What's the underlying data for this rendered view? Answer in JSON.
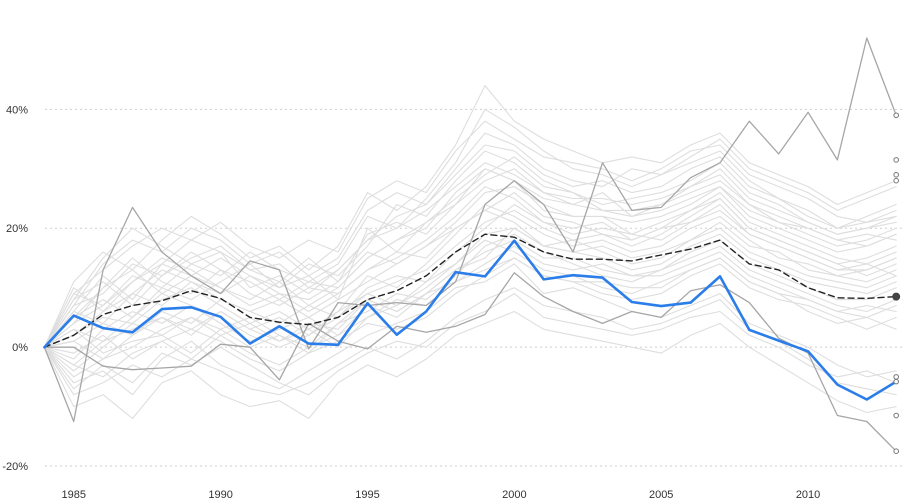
{
  "chart_data": {
    "type": "line",
    "title": "",
    "xlabel": "",
    "ylabel": "",
    "x": [
      1984,
      1985,
      1986,
      1987,
      1988,
      1989,
      1990,
      1991,
      1992,
      1993,
      1994,
      1995,
      1996,
      1997,
      1998,
      1999,
      2000,
      2001,
      2002,
      2003,
      2004,
      2005,
      2006,
      2007,
      2008,
      2009,
      2010,
      2011,
      2012,
      2013
    ],
    "xlim": [
      1983.0,
      2013.3
    ],
    "ylim": [
      -21,
      52
    ],
    "x_ticks": [
      1985,
      1990,
      1995,
      2000,
      2005,
      2010
    ],
    "x_tick_labels": [
      "1985",
      "1990",
      "1995",
      "2000",
      "2005",
      "2010"
    ],
    "y_ticks": [
      -20,
      0,
      20,
      40
    ],
    "y_tick_labels": [
      "-20%",
      "0%",
      "20%",
      "40%"
    ],
    "grid": "horizontal dotted",
    "legend": "none",
    "colors": {
      "highlight": "#2b7de9",
      "average": "#222222",
      "reference": "#a6a6a6",
      "background": "#dedede",
      "grid": "#cfcfcf"
    },
    "series": [
      {
        "role": "highlight",
        "values": [
          0,
          5.3,
          3.2,
          2.5,
          6.4,
          6.7,
          5.1,
          0.6,
          3.5,
          0.6,
          0.4,
          7.4,
          2.1,
          6.0,
          12.6,
          11.9,
          17.9,
          11.4,
          12.1,
          11.7,
          7.6,
          6.9,
          7.5,
          11.9,
          2.9,
          1.1,
          -0.7,
          -6.3,
          -8.8,
          -5.8
        ]
      },
      {
        "role": "average",
        "values": [
          0,
          2.0,
          5.5,
          7.0,
          7.8,
          9.5,
          8.2,
          5.0,
          4.2,
          3.8,
          5.0,
          8.0,
          9.5,
          12.0,
          16.0,
          19.0,
          18.5,
          16.0,
          14.8,
          14.8,
          14.5,
          15.5,
          16.5,
          18.0,
          14.0,
          13.0,
          10.0,
          8.3,
          8.2,
          8.5
        ]
      },
      {
        "role": "reference",
        "values": [
          0,
          -12.5,
          13.0,
          23.5,
          16.0,
          12.0,
          9.0,
          14.5,
          13.0,
          -0.3,
          7.5,
          7.0,
          7.5,
          7.0,
          11.0,
          24.0,
          28.0,
          24.0,
          16.0,
          31.0,
          23.0,
          23.5,
          28.5,
          31.0,
          38.0,
          32.5,
          39.5,
          31.5,
          52.0,
          39.0
        ]
      },
      {
        "role": "reference",
        "values": [
          0,
          0,
          -3.2,
          -3.8,
          -3.5,
          -3.2,
          0.5,
          0.0,
          -5.5,
          4.0,
          1.0,
          -0.3,
          3.5,
          2.5,
          3.5,
          5.5,
          12.5,
          8.5,
          6.0,
          4.0,
          6.0,
          5.0,
          9.5,
          10.5,
          7.5,
          1.5,
          -1.0,
          -11.5,
          -12.5,
          -17.5
        ]
      },
      {
        "role": "background",
        "values": [
          0,
          4,
          10,
          13,
          9,
          12,
          10,
          8,
          11,
          7,
          10,
          15,
          18,
          20,
          26,
          30,
          28,
          25,
          24,
          26,
          22,
          23,
          25,
          27,
          22,
          20,
          18,
          16,
          17,
          19
        ]
      },
      {
        "role": "background",
        "values": [
          0,
          -3,
          1,
          3,
          5,
          2,
          6,
          3,
          1,
          4,
          3,
          8,
          6,
          9,
          13,
          15,
          20,
          17,
          18,
          16,
          14,
          15,
          18,
          21,
          17,
          16,
          13,
          12,
          11,
          13
        ]
      },
      {
        "role": "background",
        "values": [
          0,
          6,
          12,
          8,
          14,
          18,
          16,
          10,
          12,
          9,
          13,
          18,
          22,
          24,
          30,
          36,
          34,
          30,
          28,
          27,
          30,
          29,
          31,
          33,
          28,
          25,
          23,
          20,
          22,
          24
        ]
      },
      {
        "role": "background",
        "values": [
          0,
          -6,
          -4,
          -8,
          -2,
          1,
          -3,
          -5,
          -7,
          -4,
          -1,
          2,
          4,
          6,
          10,
          11,
          14,
          9,
          10,
          8,
          6,
          5,
          7,
          9,
          4,
          2,
          0,
          -3,
          -5,
          -4
        ]
      },
      {
        "role": "background",
        "values": [
          0,
          8,
          15,
          20,
          17,
          14,
          12,
          16,
          13,
          11,
          14,
          22,
          20,
          25,
          31,
          40,
          37,
          33,
          30,
          29,
          27,
          29,
          32,
          35,
          30,
          28,
          26,
          23,
          25,
          27
        ]
      },
      {
        "role": "background",
        "values": [
          0,
          2,
          5,
          4,
          8,
          10,
          7,
          4,
          6,
          3,
          6,
          12,
          10,
          14,
          19,
          24,
          22,
          19,
          17,
          18,
          16,
          17,
          20,
          22,
          18,
          15,
          14,
          12,
          13,
          15
        ]
      },
      {
        "role": "background",
        "values": [
          0,
          -10,
          -8,
          -12,
          -6,
          -4,
          -8,
          -10,
          -9,
          -12,
          -6,
          -3,
          -5,
          -2,
          2,
          4,
          6,
          3,
          2,
          1,
          0,
          -1,
          2,
          4,
          0,
          -3,
          -6,
          -9,
          -11,
          -10
        ]
      },
      {
        "role": "background",
        "values": [
          0,
          10,
          6,
          11,
          14,
          12,
          15,
          12,
          10,
          14,
          12,
          17,
          24,
          22,
          28,
          33,
          31,
          27,
          26,
          24,
          25,
          26,
          28,
          31,
          26,
          24,
          21,
          19,
          20,
          22
        ]
      },
      {
        "role": "background",
        "values": [
          0,
          3,
          -1,
          1,
          2,
          -1,
          3,
          5,
          2,
          0,
          4,
          6,
          9,
          8,
          12,
          17,
          19,
          16,
          14,
          12,
          11,
          13,
          15,
          17,
          13,
          11,
          9,
          7,
          6,
          8
        ]
      },
      {
        "role": "background",
        "values": [
          0,
          7,
          9,
          14,
          12,
          16,
          13,
          9,
          7,
          10,
          9,
          13,
          15,
          18,
          22,
          27,
          25,
          21,
          20,
          21,
          18,
          20,
          23,
          26,
          21,
          19,
          17,
          15,
          14,
          16
        ]
      },
      {
        "role": "background",
        "values": [
          0,
          -2,
          3,
          6,
          4,
          7,
          5,
          2,
          0,
          2,
          5,
          10,
          12,
          11,
          16,
          20,
          24,
          21,
          19,
          20,
          19,
          18,
          21,
          24,
          19,
          17,
          15,
          13,
          14,
          12
        ]
      },
      {
        "role": "background",
        "values": [
          0,
          5,
          8,
          5,
          10,
          8,
          11,
          14,
          10,
          12,
          8,
          20,
          16,
          21,
          25,
          29,
          32,
          28,
          26,
          23,
          22,
          24,
          27,
          29,
          24,
          21,
          19,
          17,
          18,
          20
        ]
      },
      {
        "role": "background",
        "values": [
          0,
          -5,
          -2,
          0,
          3,
          5,
          2,
          -1,
          -3,
          0,
          2,
          5,
          7,
          10,
          14,
          18,
          16,
          13,
          12,
          10,
          9,
          11,
          13,
          15,
          11,
          9,
          6,
          4,
          5,
          3
        ]
      },
      {
        "role": "background",
        "values": [
          0,
          9,
          13,
          17,
          20,
          18,
          21,
          17,
          15,
          18,
          16,
          25,
          28,
          26,
          33,
          38,
          35,
          32,
          31,
          30,
          28,
          30,
          33,
          34,
          29,
          27,
          25,
          22,
          21,
          23
        ]
      },
      {
        "role": "background",
        "values": [
          0,
          1,
          4,
          2,
          6,
          4,
          8,
          6,
          4,
          7,
          5,
          9,
          11,
          13,
          17,
          21,
          23,
          20,
          18,
          19,
          17,
          19,
          22,
          25,
          20,
          18,
          16,
          14,
          12,
          14
        ]
      },
      {
        "role": "background",
        "values": [
          0,
          -8,
          -6,
          -3,
          -5,
          -2,
          -4,
          -7,
          -8,
          -6,
          -3,
          0,
          -2,
          1,
          5,
          8,
          10,
          7,
          6,
          5,
          3,
          4,
          6,
          8,
          3,
          1,
          -2,
          -6,
          -7,
          -8
        ]
      },
      {
        "role": "background",
        "values": [
          0,
          6,
          4,
          9,
          7,
          11,
          9,
          12,
          9,
          8,
          11,
          16,
          14,
          17,
          21,
          26,
          27,
          24,
          22,
          22,
          21,
          22,
          24,
          27,
          23,
          21,
          20,
          18,
          19,
          18
        ]
      },
      {
        "role": "background",
        "values": [
          0,
          4,
          7,
          11,
          15,
          13,
          10,
          7,
          9,
          6,
          9,
          13,
          16,
          15,
          20,
          23,
          21,
          17,
          16,
          15,
          13,
          14,
          17,
          19,
          15,
          13,
          11,
          10,
          9,
          11
        ]
      },
      {
        "role": "background",
        "values": [
          0,
          -1,
          2,
          -2,
          1,
          3,
          1,
          -2,
          -4,
          -1,
          1,
          4,
          3,
          5,
          9,
          12,
          15,
          12,
          11,
          9,
          8,
          9,
          12,
          14,
          10,
          8,
          7,
          5,
          3,
          5
        ]
      },
      {
        "role": "background",
        "values": [
          0,
          11,
          16,
          13,
          18,
          22,
          19,
          15,
          17,
          13,
          17,
          26,
          23,
          27,
          34,
          44,
          38,
          35,
          33,
          31,
          32,
          31,
          34,
          36,
          31,
          29,
          27,
          24,
          26,
          28
        ]
      },
      {
        "role": "background",
        "values": [
          0,
          3,
          1,
          5,
          9,
          7,
          4,
          1,
          3,
          5,
          2,
          7,
          5,
          9,
          11,
          14,
          17,
          14,
          13,
          14,
          12,
          12,
          14,
          16,
          12,
          10,
          8,
          6,
          7,
          6
        ]
      },
      {
        "role": "background",
        "values": [
          0,
          -4,
          0,
          4,
          2,
          5,
          3,
          0,
          2,
          -1,
          4,
          8,
          6,
          9,
          13,
          16,
          18,
          15,
          15,
          13,
          12,
          13,
          16,
          18,
          14,
          12,
          10,
          8,
          8,
          10
        ]
      },
      {
        "role": "background",
        "values": [
          0,
          8,
          11,
          7,
          12,
          15,
          17,
          13,
          11,
          15,
          11,
          19,
          21,
          19,
          24,
          28,
          30,
          26,
          25,
          25,
          24,
          25,
          27,
          30,
          25,
          23,
          21,
          19,
          20,
          21
        ]
      },
      {
        "role": "background",
        "values": [
          0,
          -7,
          -3,
          -6,
          -1,
          -3,
          0,
          -3,
          -6,
          -8,
          -4,
          -1,
          1,
          0,
          4,
          6,
          9,
          5,
          4,
          3,
          2,
          3,
          5,
          6,
          2,
          0,
          -3,
          -5,
          -4,
          -6
        ]
      },
      {
        "role": "background",
        "values": [
          0,
          5,
          10,
          15,
          11,
          9,
          13,
          11,
          8,
          11,
          10,
          15,
          18,
          21,
          24,
          30,
          28,
          23,
          22,
          22,
          19,
          21,
          23,
          25,
          20,
          18,
          16,
          14,
          15,
          17
        ]
      },
      {
        "role": "background",
        "values": [
          0,
          2,
          6,
          9,
          13,
          11,
          8,
          6,
          8,
          5,
          8,
          11,
          14,
          17,
          20,
          23,
          26,
          22,
          21,
          19,
          18,
          20,
          21,
          23,
          19,
          17,
          15,
          13,
          13,
          15
        ]
      },
      {
        "role": "background",
        "values": [
          0,
          -3,
          -5,
          -1,
          1,
          -2,
          2,
          4,
          1,
          3,
          0,
          5,
          8,
          7,
          11,
          13,
          15,
          12,
          11,
          11,
          10,
          10,
          13,
          15,
          11,
          9,
          8,
          6,
          5,
          7
        ]
      },
      {
        "role": "background",
        "values": [
          0,
          7,
          14,
          18,
          16,
          20,
          18,
          14,
          16,
          12,
          15,
          23,
          26,
          24,
          29,
          34,
          33,
          29,
          27,
          28,
          26,
          27,
          30,
          32,
          27,
          25,
          22,
          20,
          21,
          22
        ]
      },
      {
        "role": "background",
        "values": [
          0,
          1,
          -2,
          2,
          5,
          3,
          6,
          3,
          5,
          2,
          6,
          9,
          7,
          11,
          14,
          19,
          20,
          17,
          16,
          17,
          15,
          16,
          18,
          20,
          16,
          14,
          12,
          11,
          10,
          12
        ]
      },
      {
        "role": "background",
        "values": [
          0,
          9,
          7,
          12,
          10,
          14,
          16,
          13,
          14,
          10,
          13,
          18,
          20,
          23,
          27,
          31,
          29,
          26,
          24,
          23,
          23,
          24,
          26,
          28,
          24,
          22,
          20,
          18,
          17,
          19
        ]
      }
    ],
    "end_markers": [
      {
        "value": 39.0,
        "style": "open"
      },
      {
        "value": 31.5,
        "style": "open"
      },
      {
        "value": 29.0,
        "style": "open"
      },
      {
        "value": 28.0,
        "style": "open"
      },
      {
        "value": 8.5,
        "style": "filled"
      },
      {
        "value": -5.0,
        "style": "open"
      },
      {
        "value": -5.8,
        "style": "open"
      },
      {
        "value": -11.5,
        "style": "open"
      },
      {
        "value": -17.5,
        "style": "open"
      }
    ]
  }
}
